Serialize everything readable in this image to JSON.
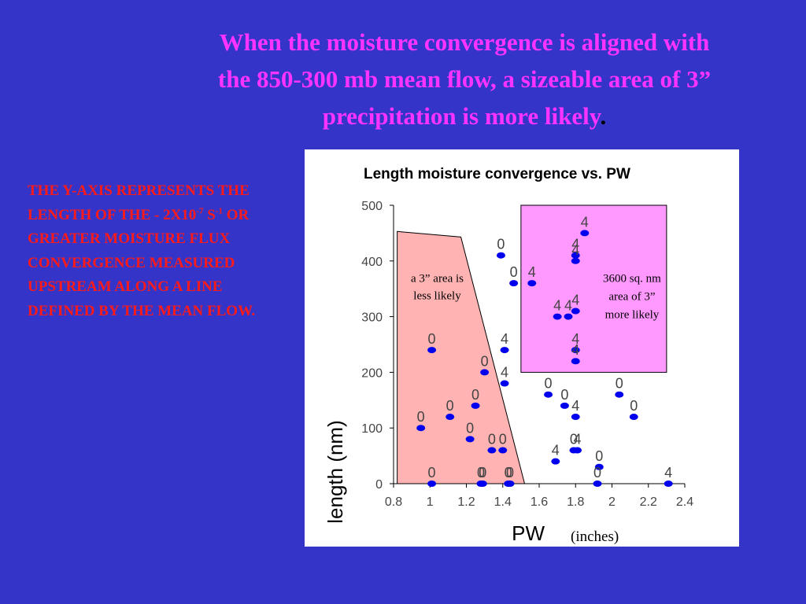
{
  "slide": {
    "title_lines": [
      "When the moisture convergence is aligned with",
      "the 850-300 mb mean flow,  a sizeable area of 3”",
      "precipitation is more likely"
    ],
    "title_period": ".",
    "side_note": {
      "part1": "THE Y-AXIS REPRESENTS THE LENGTH OF THE            - 2X10",
      "exp1": "-7",
      "part2": " S",
      "exp2": "-1",
      "part3": "  OR GREATER MOISTURE FLUX CONVERGENCE MEASURED UPSTREAM ALONG A LINE DEFINED BY THE MEAN FLOW."
    }
  },
  "colors": {
    "background": "#3434c8",
    "title": "#ff33ff",
    "side_note": "#ff1a1a",
    "points": "#0000ee",
    "less_likely_region": "#ffb3b3",
    "more_likely_region": "#ff99ff"
  },
  "chart_data": {
    "type": "scatter",
    "title": "Length moisture convergence  vs. PW",
    "xlabel": "PW",
    "xlabel_unit": "(inches)",
    "ylabel": "length (nm)",
    "xlim": [
      0.8,
      2.4
    ],
    "ylim": [
      0,
      500
    ],
    "xticks": [
      "0.8",
      "1",
      "1.2",
      "1.4",
      "1.6",
      "1.8",
      "2",
      "2.2",
      "2.4"
    ],
    "yticks": [
      "0",
      "100",
      "200",
      "300",
      "400",
      "500"
    ],
    "xtick_values": [
      0.8,
      1.0,
      1.2,
      1.4,
      1.6,
      1.8,
      2.0,
      2.2,
      2.4
    ],
    "ytick_values": [
      0,
      100,
      200,
      300,
      400,
      500
    ],
    "grid": false,
    "regions": [
      {
        "label_lines": [
          "a 3” area is",
          "less likely"
        ],
        "polygon": [
          [
            0.82,
            453
          ],
          [
            1.17,
            443
          ],
          [
            1.52,
            0
          ],
          [
            0.82,
            0
          ]
        ]
      },
      {
        "label_lines": [
          "3600 sq. nm",
          "area  of 3”",
          "more likely"
        ],
        "rect": {
          "x": [
            1.5,
            2.3
          ],
          "y": [
            200,
            500
          ]
        }
      }
    ],
    "points": [
      {
        "x": 0.95,
        "y": 100,
        "label": "0"
      },
      {
        "x": 1.01,
        "y": 240,
        "label": "0"
      },
      {
        "x": 1.01,
        "y": 0,
        "label": "0"
      },
      {
        "x": 1.11,
        "y": 120,
        "label": "0"
      },
      {
        "x": 1.22,
        "y": 80,
        "label": "0"
      },
      {
        "x": 1.25,
        "y": 140,
        "label": "0"
      },
      {
        "x": 1.28,
        "y": 0,
        "label": "0"
      },
      {
        "x": 1.29,
        "y": 0,
        "label": "0"
      },
      {
        "x": 1.3,
        "y": 200,
        "label": "0"
      },
      {
        "x": 1.34,
        "y": 60,
        "label": "0"
      },
      {
        "x": 1.39,
        "y": 410,
        "label": "0"
      },
      {
        "x": 1.4,
        "y": 60,
        "label": "0"
      },
      {
        "x": 1.41,
        "y": 180,
        "label": "4"
      },
      {
        "x": 1.41,
        "y": 240,
        "label": "4"
      },
      {
        "x": 1.43,
        "y": 0,
        "label": "0"
      },
      {
        "x": 1.44,
        "y": 0,
        "label": "0"
      },
      {
        "x": 1.46,
        "y": 360,
        "label": "0"
      },
      {
        "x": 1.56,
        "y": 360,
        "label": "4"
      },
      {
        "x": 1.65,
        "y": 160,
        "label": "0"
      },
      {
        "x": 1.69,
        "y": 40,
        "label": "4"
      },
      {
        "x": 1.7,
        "y": 300,
        "label": "4"
      },
      {
        "x": 1.74,
        "y": 140,
        "label": "0"
      },
      {
        "x": 1.76,
        "y": 300,
        "label": "4"
      },
      {
        "x": 1.79,
        "y": 60,
        "label": "0"
      },
      {
        "x": 1.8,
        "y": 120,
        "label": "4"
      },
      {
        "x": 1.8,
        "y": 220,
        "label": "4"
      },
      {
        "x": 1.8,
        "y": 240,
        "label": "4"
      },
      {
        "x": 1.8,
        "y": 310,
        "label": "4"
      },
      {
        "x": 1.8,
        "y": 400,
        "label": "4"
      },
      {
        "x": 1.8,
        "y": 410,
        "label": "4"
      },
      {
        "x": 1.81,
        "y": 60,
        "label": "4"
      },
      {
        "x": 1.85,
        "y": 450,
        "label": "4"
      },
      {
        "x": 1.92,
        "y": 0,
        "label": "0"
      },
      {
        "x": 1.93,
        "y": 30,
        "label": "0"
      },
      {
        "x": 2.04,
        "y": 160,
        "label": "0"
      },
      {
        "x": 2.12,
        "y": 120,
        "label": "0"
      },
      {
        "x": 2.31,
        "y": 0,
        "label": "4"
      }
    ]
  }
}
